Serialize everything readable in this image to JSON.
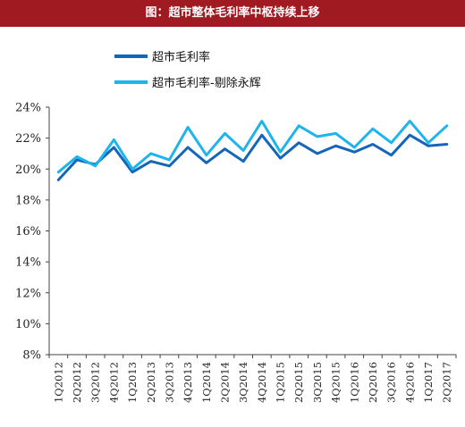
{
  "banner": {
    "title": "图：超市整体毛利率中枢持续上移"
  },
  "chart_data": {
    "type": "line",
    "title": "图：超市整体毛利率中枢持续上移",
    "xlabel": "",
    "ylabel": "",
    "categories": [
      "1Q2012",
      "2Q2012",
      "3Q2012",
      "4Q2012",
      "1Q2013",
      "2Q2013",
      "3Q2013",
      "4Q2013",
      "1Q2014",
      "2Q2014",
      "3Q2014",
      "4Q2014",
      "1Q2015",
      "2Q2015",
      "3Q2015",
      "4Q2015",
      "1Q2016",
      "2Q2016",
      "3Q2016",
      "4Q2016",
      "1Q2017",
      "2Q2017"
    ],
    "ylim": [
      8,
      24
    ],
    "yticks": [
      "8%",
      "10%",
      "12%",
      "14%",
      "16%",
      "18%",
      "20%",
      "22%",
      "24%"
    ],
    "ytick_values": [
      8,
      10,
      12,
      14,
      16,
      18,
      20,
      22,
      24
    ],
    "legend": "top-left",
    "grid": false,
    "series": [
      {
        "name": "超市毛利率",
        "color": "#1565b8",
        "values": [
          19.3,
          20.6,
          20.3,
          21.4,
          19.8,
          20.5,
          20.2,
          21.4,
          20.4,
          21.3,
          20.5,
          22.2,
          20.7,
          21.7,
          21.0,
          21.5,
          21.1,
          21.6,
          20.9,
          22.2,
          21.5,
          21.6
        ]
      },
      {
        "name": "超市毛利率-剔除永辉",
        "color": "#1eb4ec",
        "values": [
          19.8,
          20.8,
          20.2,
          21.9,
          20.0,
          21.0,
          20.6,
          22.7,
          20.9,
          22.3,
          21.2,
          23.1,
          21.1,
          22.8,
          22.1,
          22.3,
          21.4,
          22.6,
          21.7,
          23.1,
          21.7,
          22.8
        ]
      }
    ]
  }
}
